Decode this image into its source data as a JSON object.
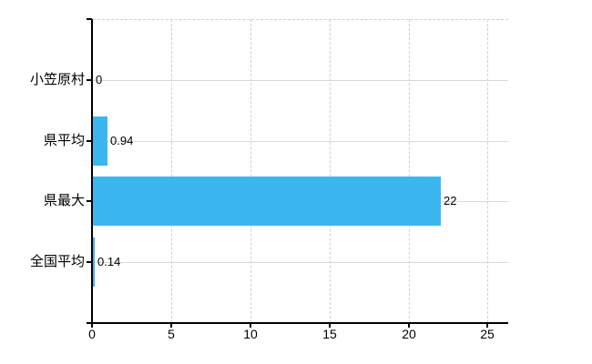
{
  "chart_data": {
    "type": "bar",
    "orientation": "horizontal",
    "title": "",
    "categories": [
      "小笠原村",
      "県平均",
      "県最大",
      "全国平均"
    ],
    "values": [
      0,
      0.94,
      22,
      0.14
    ],
    "value_labels": [
      "0",
      "0.94",
      "22",
      "0.14"
    ],
    "x_tick_values": [
      0,
      5,
      10,
      15,
      20,
      25
    ],
    "x_tick_labels": [
      "0",
      "5",
      "10",
      "15",
      "20",
      "25"
    ],
    "xlim": [
      0,
      26.3
    ],
    "grid": "on",
    "legend": "none",
    "colors": {
      "bar": "#3cb6ee",
      "axis": "#000000",
      "grid_horizontal": "#d9d9d9",
      "grid_vertical": "#cfcfcf",
      "plot_top_border": "#cfcfcf",
      "text": "#000000",
      "background": "#ffffff"
    }
  }
}
